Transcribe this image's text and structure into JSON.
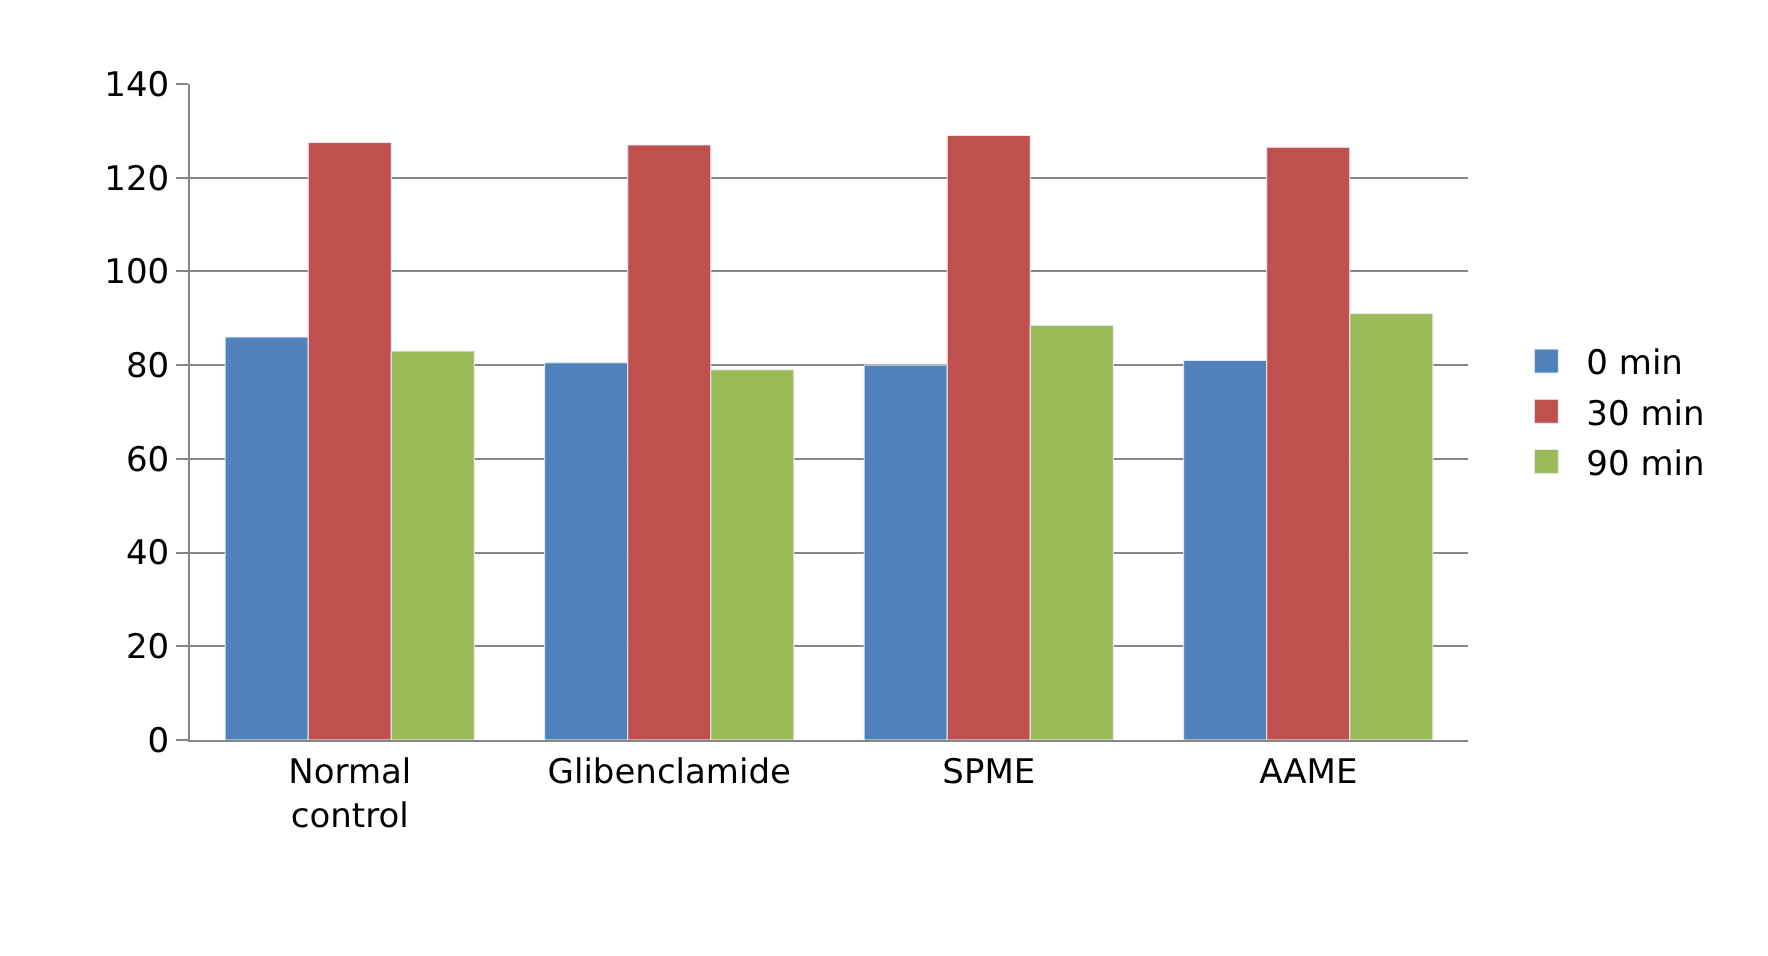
{
  "chart_data": {
    "type": "bar",
    "categories": [
      "Normal control",
      "Glibenclamide",
      "SPME",
      "AAME"
    ],
    "series": [
      {
        "name": "0 min",
        "color": "#4f81bd",
        "values": [
          86,
          80.5,
          80,
          81
        ]
      },
      {
        "name": "30 min",
        "color": "#c0504d",
        "values": [
          127.5,
          127,
          129,
          126.5
        ]
      },
      {
        "name": "90 min",
        "color": "#9bbb59",
        "values": [
          83,
          79,
          88.5,
          91
        ]
      }
    ],
    "ylim": [
      0,
      140
    ],
    "yticks": [
      0,
      20,
      40,
      60,
      80,
      100,
      120,
      140
    ],
    "grid": "y",
    "legend": "right"
  }
}
